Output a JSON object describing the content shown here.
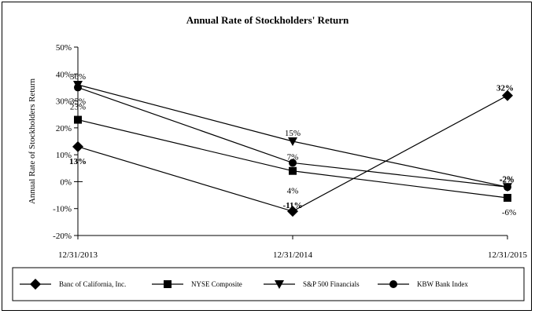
{
  "chart_data": {
    "type": "line",
    "title": "Annual Rate of Stockholders' Return",
    "ylabel": "Annual Rate of Stockholders Return",
    "xlabel": "",
    "categories": [
      "12/31/2013",
      "12/31/2014",
      "12/31/2015"
    ],
    "ylim": [
      -20,
      50
    ],
    "yticks": [
      -20,
      -10,
      0,
      10,
      20,
      30,
      40,
      50
    ],
    "ytick_labels": [
      "-20%",
      "-10%",
      "0%",
      "10%",
      "20%",
      "30%",
      "40%",
      "50%"
    ],
    "grid": false,
    "legend_placement": "bottom",
    "series": [
      {
        "name": "Banc of California, Inc.",
        "marker": "diamond",
        "values": [
          13,
          -11,
          32
        ],
        "labels": [
          "13%",
          "-11%",
          "32%"
        ],
        "label_bold": true
      },
      {
        "name": "NYSE Composite",
        "marker": "square",
        "values": [
          23,
          4,
          -6
        ],
        "labels": [
          "23%",
          "4%",
          "-6%"
        ],
        "label_bold": false
      },
      {
        "name": "S&P 500 Financials",
        "marker": "triangle-down",
        "values": [
          36,
          15,
          -2
        ],
        "labels": [
          "36%",
          "15%",
          "-2%"
        ],
        "label_bold": false
      },
      {
        "name": "KBW Bank Index",
        "marker": "circle",
        "values": [
          35,
          7,
          -2
        ],
        "labels": [
          "35%",
          "7%",
          "-2%"
        ],
        "label_bold": false
      }
    ]
  }
}
